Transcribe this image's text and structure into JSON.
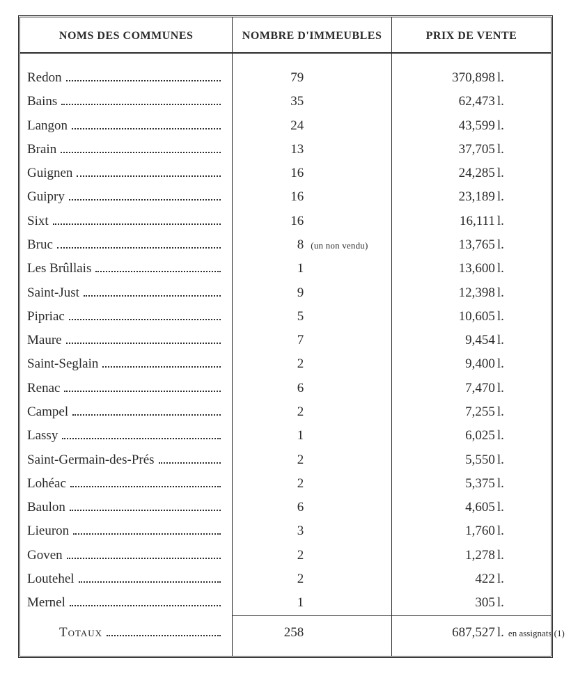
{
  "colors": {
    "text": "#2b2b2b",
    "background": "#ffffff",
    "rule": "#2b2b2b"
  },
  "typography": {
    "body_fontsize_pt": 14,
    "header_fontsize_pt": 12,
    "note_fontsize_pt": 10,
    "family": "Century Schoolbook / Old-style serif"
  },
  "table": {
    "type": "table",
    "columns": {
      "communes": "NOMS DES COMMUNES",
      "immeubles": "NOMBRE D'IMMEUBLES",
      "prix": "PRIX DE VENTE"
    },
    "price_unit": "l.",
    "rows": [
      {
        "commune": "Redon",
        "immeubles": "79",
        "prix": "370,898"
      },
      {
        "commune": "Bains",
        "immeubles": "35",
        "prix": "62,473"
      },
      {
        "commune": "Langon",
        "immeubles": "24",
        "prix": "43,599"
      },
      {
        "commune": "Brain",
        "immeubles": "13",
        "prix": "37,705"
      },
      {
        "commune": "Guignen",
        "immeubles": "16",
        "prix": "24,285"
      },
      {
        "commune": "Guipry",
        "immeubles": "16",
        "prix": "23,189"
      },
      {
        "commune": "Sixt",
        "immeubles": "16",
        "prix": "16,111"
      },
      {
        "commune": "Bruc",
        "immeubles": "8",
        "note": "(un non vendu)",
        "prix": "13,765"
      },
      {
        "commune": "Les Brûllais",
        "immeubles": "1",
        "prix": "13,600"
      },
      {
        "commune": "Saint-Just",
        "immeubles": "9",
        "prix": "12,398"
      },
      {
        "commune": "Pipriac",
        "immeubles": "5",
        "prix": "10,605"
      },
      {
        "commune": "Maure",
        "immeubles": "7",
        "prix": "9,454"
      },
      {
        "commune": "Saint-Seglain",
        "immeubles": "2",
        "prix": "9,400"
      },
      {
        "commune": "Renac",
        "immeubles": "6",
        "prix": "7,470"
      },
      {
        "commune": "Campel",
        "immeubles": "2",
        "prix": "7,255"
      },
      {
        "commune": "Lassy",
        "immeubles": "1",
        "prix": "6,025"
      },
      {
        "commune": "Saint-Germain-des-Prés",
        "immeubles": "2",
        "prix": "5,550"
      },
      {
        "commune": "Lohéac",
        "immeubles": "2",
        "prix": "5,375"
      },
      {
        "commune": "Baulon",
        "immeubles": "6",
        "prix": "4,605"
      },
      {
        "commune": "Lieuron",
        "immeubles": "3",
        "prix": "1,760"
      },
      {
        "commune": "Goven",
        "immeubles": "2",
        "prix": "1,278"
      },
      {
        "commune": "Loutehel",
        "immeubles": "2",
        "prix": "422"
      },
      {
        "commune": "Mernel",
        "immeubles": "1",
        "prix": "305"
      }
    ],
    "totals": {
      "label": "Totaux",
      "immeubles": "258",
      "prix": "687,527",
      "prix_tail": "en assignats (1)"
    }
  }
}
